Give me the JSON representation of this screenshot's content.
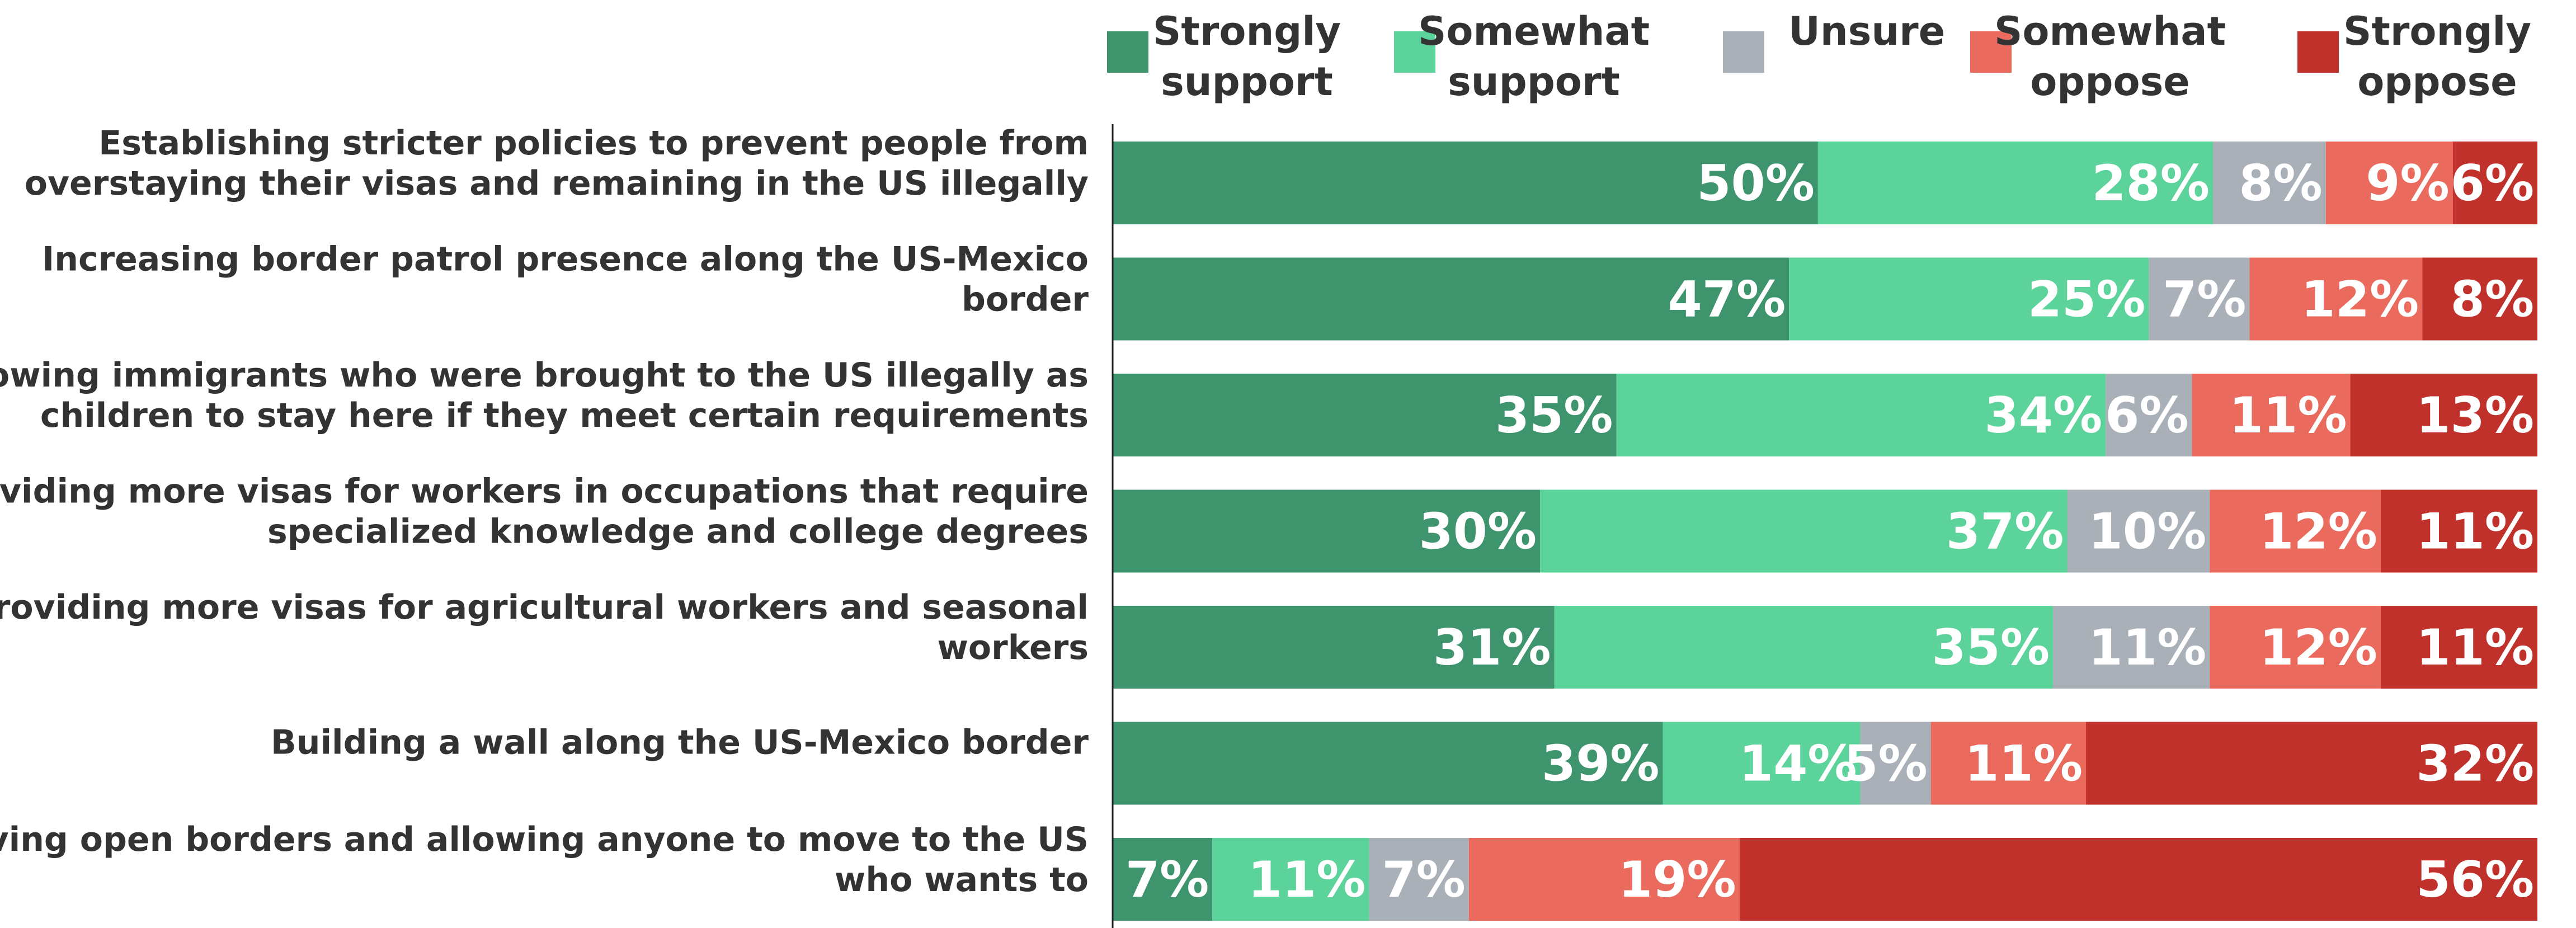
{
  "chart_data": {
    "type": "bar",
    "orientation": "horizontal",
    "stacked": true,
    "legend_position": "top-right",
    "categories": [
      "Establishing stricter policies to prevent people from overstaying their visas and remaining in the US illegally",
      "Increasing border patrol presence along the US-Mexico border",
      "Allowing immigrants who were brought to the US illegally as children to stay here if they meet certain requirements",
      "Providing more visas for workers in occupations that require specialized knowledge and college degrees",
      "Providing more visas for agricultural workers and seasonal workers",
      "Building a wall along the US-Mexico border",
      "Having open borders and allowing anyone to move to the US who wants to"
    ],
    "category_lines": [
      [
        "Establishing stricter policies to prevent people from",
        "overstaying their visas and remaining in the US illegally"
      ],
      [
        "Increasing border patrol presence along the US-Mexico",
        "border"
      ],
      [
        "Allowing immigrants who were brought to the US illegally as",
        "children to stay here if they meet certain requirements"
      ],
      [
        "Providing more visas for workers in occupations that require",
        "specialized knowledge and college degrees"
      ],
      [
        "Providing more visas for agricultural workers and seasonal",
        "workers"
      ],
      [
        "Building a wall along the US-Mexico border"
      ],
      [
        "Having open borders and allowing anyone to move to the US",
        "who wants to"
      ]
    ],
    "series": [
      {
        "name": "Strongly support",
        "name_lines": [
          "Strongly",
          "support"
        ],
        "color": "#3e946d",
        "values": [
          50,
          47,
          35,
          30,
          31,
          39,
          7
        ]
      },
      {
        "name": "Somewhat support",
        "name_lines": [
          "Somewhat",
          "support"
        ],
        "color": "#5bd39b",
        "values": [
          28,
          25,
          34,
          37,
          35,
          14,
          11
        ]
      },
      {
        "name": "Unsure",
        "name_lines": [
          "Unsure"
        ],
        "color": "#aab0b8",
        "values": [
          8,
          7,
          6,
          10,
          11,
          5,
          7
        ]
      },
      {
        "name": "Somewhat oppose",
        "name_lines": [
          "Somewhat",
          "oppose"
        ],
        "color": "#ea6a5d",
        "values": [
          9,
          12,
          11,
          12,
          12,
          11,
          19
        ]
      },
      {
        "name": "Strongly oppose",
        "name_lines": [
          "Strongly",
          "oppose"
        ],
        "color": "#c0312b",
        "values": [
          6,
          8,
          13,
          11,
          11,
          32,
          56
        ]
      }
    ],
    "value_suffix": "%"
  }
}
